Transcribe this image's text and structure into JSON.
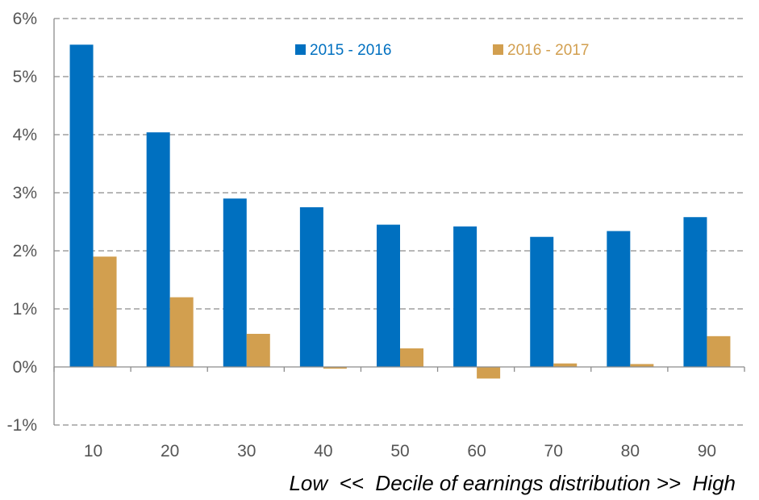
{
  "chart_data": {
    "type": "bar",
    "categories": [
      "10",
      "20",
      "30",
      "40",
      "50",
      "60",
      "70",
      "80",
      "90"
    ],
    "series": [
      {
        "name": "2015 - 2016",
        "color": "#0070C0",
        "values": [
          5.55,
          4.04,
          2.9,
          2.75,
          2.45,
          2.42,
          2.24,
          2.34,
          2.58
        ]
      },
      {
        "name": "2016 - 2017",
        "color": "#D29F4F",
        "values": [
          1.9,
          1.2,
          0.57,
          -0.03,
          0.32,
          -0.2,
          0.06,
          0.05,
          0.53
        ]
      }
    ],
    "ylim": [
      -1,
      6
    ],
    "yticks": [
      -1,
      0,
      1,
      2,
      3,
      4,
      5,
      6
    ],
    "ytick_labels": [
      "-1%",
      "0%",
      "1%",
      "2%",
      "3%",
      "4%",
      "5%",
      "6%"
    ],
    "xlabel": "Low  <<  Decile of earnings distribution >>  High",
    "ylabel": "",
    "title": "",
    "grid": true,
    "legend_position": "top"
  }
}
